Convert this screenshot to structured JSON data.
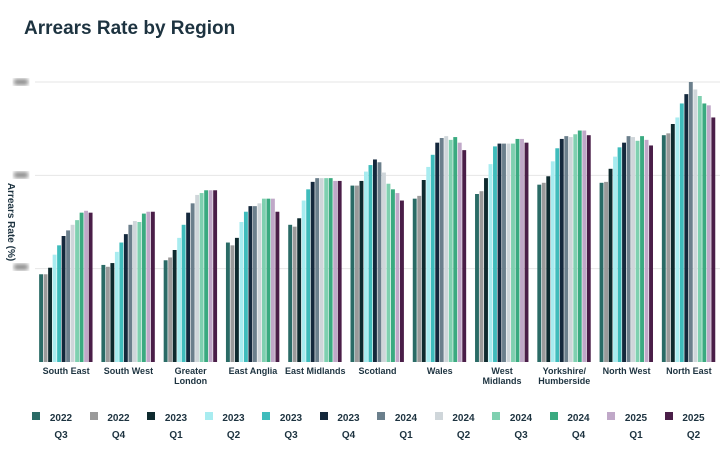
{
  "chart_data": {
    "type": "bar",
    "title": "Arrears Rate by Region",
    "y_label": "Arrears Rate (%)",
    "categories": [
      "South East",
      "South West",
      "Greater London",
      "East Anglia",
      "East Midlands",
      "Scotland",
      "Wales",
      "West Midlands",
      "Yorkshire/ Humberside",
      "North West",
      "North East"
    ],
    "ylim": [
      0,
      3.15
    ],
    "yticks": [
      1,
      2,
      3
    ],
    "grid": true,
    "series": [
      {
        "name": "2022 Q3",
        "color": "#2a6b66",
        "values": [
          0.94,
          1.04,
          1.09,
          1.28,
          1.47,
          1.89,
          1.75,
          1.8,
          1.9,
          1.92,
          2.43
        ]
      },
      {
        "name": "2022 Q4",
        "color": "#9a9a9a",
        "values": [
          0.94,
          1.02,
          1.12,
          1.25,
          1.45,
          1.89,
          1.78,
          1.83,
          1.92,
          1.93,
          2.45
        ]
      },
      {
        "name": "2023 Q1",
        "color": "#0e2a2e",
        "values": [
          1.01,
          1.06,
          1.2,
          1.33,
          1.54,
          1.94,
          1.95,
          1.97,
          1.99,
          2.07,
          2.55
        ]
      },
      {
        "name": "2023 Q2",
        "color": "#a8ecf0",
        "values": [
          1.15,
          1.18,
          1.33,
          1.5,
          1.73,
          2.04,
          2.09,
          2.12,
          2.15,
          2.2,
          2.62
        ]
      },
      {
        "name": "2023 Q3",
        "color": "#3fbcbc",
        "values": [
          1.25,
          1.28,
          1.47,
          1.61,
          1.85,
          2.11,
          2.22,
          2.31,
          2.29,
          2.3,
          2.77
        ]
      },
      {
        "name": "2023 Q4",
        "color": "#14283c",
        "values": [
          1.35,
          1.37,
          1.6,
          1.67,
          1.93,
          2.17,
          2.35,
          2.34,
          2.39,
          2.35,
          2.87
        ]
      },
      {
        "name": "2024 Q1",
        "color": "#6b7f8c",
        "values": [
          1.41,
          1.47,
          1.7,
          1.67,
          1.97,
          2.14,
          2.4,
          2.34,
          2.42,
          2.42,
          3.0
        ]
      },
      {
        "name": "2024 Q2",
        "color": "#cfd6da",
        "values": [
          1.47,
          1.51,
          1.79,
          1.7,
          1.97,
          2.03,
          2.42,
          2.34,
          2.41,
          2.41,
          2.92
        ]
      },
      {
        "name": "2024 Q3",
        "color": "#7fd0b0",
        "values": [
          1.52,
          1.5,
          1.81,
          1.75,
          1.97,
          1.91,
          2.38,
          2.34,
          2.44,
          2.37,
          2.85
        ]
      },
      {
        "name": "2024 Q4",
        "color": "#3aaa80",
        "values": [
          1.6,
          1.59,
          1.84,
          1.75,
          1.97,
          1.85,
          2.41,
          2.39,
          2.48,
          2.42,
          2.77
        ]
      },
      {
        "name": "2025 Q1",
        "color": "#c0a8c8",
        "values": [
          1.62,
          1.61,
          1.84,
          1.75,
          1.94,
          1.81,
          2.35,
          2.39,
          2.48,
          2.38,
          2.75
        ]
      },
      {
        "name": "2025 Q2",
        "color": "#4a1e48",
        "values": [
          1.6,
          1.61,
          1.84,
          1.61,
          1.94,
          1.73,
          2.27,
          2.35,
          2.43,
          2.32,
          2.62
        ]
      }
    ]
  }
}
